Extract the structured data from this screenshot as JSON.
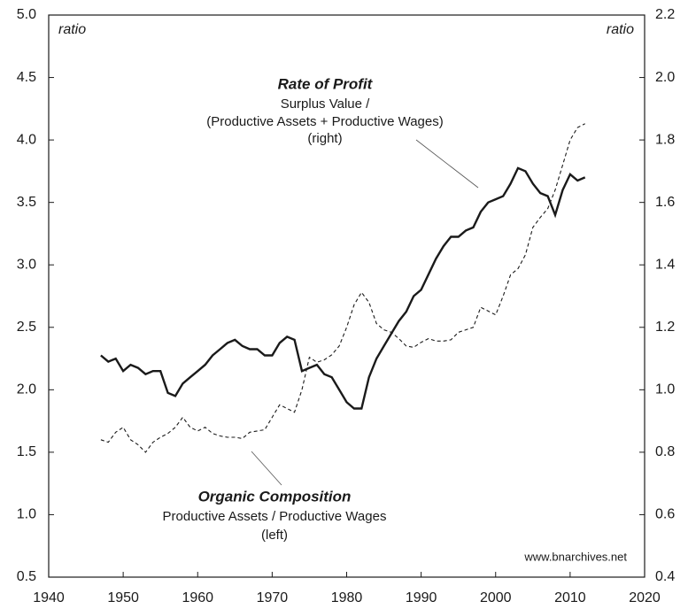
{
  "chart_data": {
    "type": "line",
    "y_label": "ratio",
    "y2_label": "ratio",
    "source": "www.bnarchives.net",
    "annotations": [
      "Surplus Value /",
      "(Productive Assets + Productive Wages)",
      "(right)",
      "Productive Assets / Productive Wages",
      "(left)"
    ],
    "x": [
      1947,
      1948,
      1949,
      1950,
      1951,
      1952,
      1953,
      1954,
      1955,
      1956,
      1957,
      1958,
      1959,
      1960,
      1961,
      1962,
      1963,
      1964,
      1965,
      1966,
      1967,
      1968,
      1969,
      1970,
      1971,
      1972,
      1973,
      1974,
      1975,
      1976,
      1977,
      1978,
      1979,
      1980,
      1981,
      1982,
      1983,
      1984,
      1985,
      1986,
      1987,
      1988,
      1989,
      1990,
      1991,
      1992,
      1993,
      1994,
      1995,
      1996,
      1997,
      1998,
      1999,
      2000,
      2001,
      2002,
      2003,
      2004,
      2005,
      2006,
      2007,
      2008,
      2009,
      2010,
      2011,
      2012
    ],
    "series": [
      {
        "name": "Rate of Profit",
        "color": "#1a1a1a",
        "style": "solid",
        "axis": "y2",
        "values": [
          1.11,
          1.09,
          1.1,
          1.06,
          1.08,
          1.07,
          1.05,
          1.06,
          1.06,
          0.99,
          0.98,
          1.02,
          1.04,
          1.06,
          1.08,
          1.11,
          1.13,
          1.15,
          1.16,
          1.14,
          1.13,
          1.13,
          1.11,
          1.11,
          1.15,
          1.17,
          1.16,
          1.06,
          1.07,
          1.08,
          1.05,
          1.04,
          1.0,
          0.96,
          0.94,
          0.94,
          1.04,
          1.1,
          1.14,
          1.18,
          1.22,
          1.25,
          1.3,
          1.32,
          1.37,
          1.42,
          1.46,
          1.49,
          1.49,
          1.51,
          1.52,
          1.57,
          1.6,
          1.61,
          1.62,
          1.66,
          1.71,
          1.7,
          1.66,
          1.63,
          1.62,
          1.56,
          1.64,
          1.69,
          1.67,
          1.68
        ]
      },
      {
        "name": "Organic Composition",
        "color": "#1a1a1a",
        "style": "dashed",
        "axis": "y",
        "values": [
          1.6,
          1.58,
          1.66,
          1.7,
          1.6,
          1.56,
          1.5,
          1.58,
          1.62,
          1.65,
          1.7,
          1.78,
          1.7,
          1.67,
          1.7,
          1.65,
          1.63,
          1.62,
          1.62,
          1.61,
          1.66,
          1.67,
          1.68,
          1.78,
          1.88,
          1.85,
          1.82,
          2.0,
          2.26,
          2.22,
          2.24,
          2.28,
          2.35,
          2.5,
          2.68,
          2.78,
          2.7,
          2.53,
          2.48,
          2.46,
          2.41,
          2.35,
          2.34,
          2.38,
          2.41,
          2.39,
          2.39,
          2.4,
          2.46,
          2.48,
          2.5,
          2.66,
          2.63,
          2.6,
          2.75,
          2.92,
          2.97,
          3.08,
          3.3,
          3.38,
          3.45,
          3.6,
          3.8,
          4.0,
          4.1,
          4.13
        ]
      }
    ],
    "xlim": [
      1940,
      2020
    ],
    "xticks": [
      1940,
      1950,
      1960,
      1970,
      1980,
      1990,
      2000,
      2010,
      2020
    ],
    "ylim": [
      0.5,
      5.0
    ],
    "yticks": [
      0.5,
      {
        "value": 1,
        "label": "1.0"
      },
      1.5,
      {
        "value": 2,
        "label": "2.0"
      },
      2.5,
      {
        "value": 3,
        "label": "3.0"
      },
      3.5,
      {
        "value": 4,
        "label": "4.0"
      },
      4.5,
      {
        "value": 5,
        "label": "5.0"
      }
    ],
    "y2lim": [
      0.4,
      2.2
    ],
    "y2ticks": [
      0.4,
      0.6,
      0.8,
      {
        "value": 1,
        "label": "1.0"
      },
      1.2,
      1.4,
      1.6,
      1.8,
      {
        "value": 2,
        "label": "2.0"
      },
      2.2
    ],
    "grid": false
  }
}
